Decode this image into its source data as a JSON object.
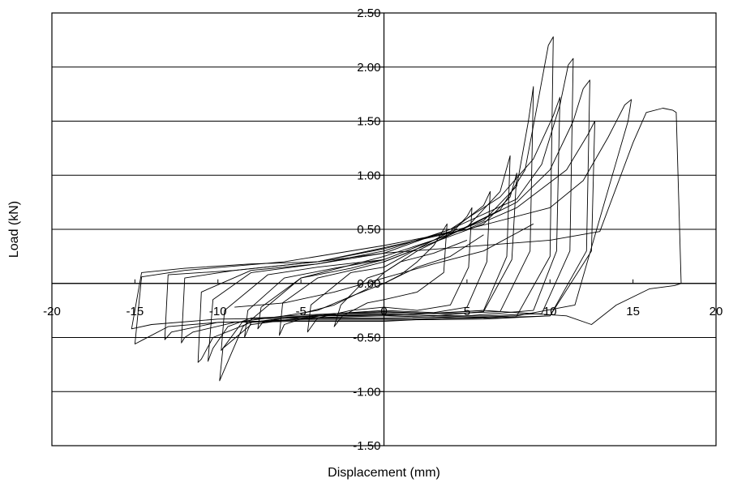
{
  "chart_data": {
    "type": "line",
    "title": "",
    "xlabel": "Displacement (mm)",
    "ylabel": "Load (kN)",
    "xlim": [
      -20,
      20
    ],
    "ylim": [
      -1.5,
      2.5
    ],
    "x_ticks": [
      "-20",
      "-15",
      "-10",
      "-5",
      "0",
      "5",
      "10",
      "15",
      "20"
    ],
    "y_ticks": [
      "2.50",
      "2.00",
      "1.50",
      "1.00",
      "0.50",
      "0.00",
      "-0.50",
      "-1.00",
      "-1.50"
    ],
    "grid": "horizontal",
    "legend": "none",
    "line_color": "#000000",
    "series": [
      {
        "x": [
          0,
          1,
          2,
          3,
          3.8,
          3.6,
          2,
          0,
          -1,
          -2.5,
          -3,
          -2.6,
          -1,
          0
        ],
        "y": [
          0,
          0.08,
          0.2,
          0.35,
          0.55,
          0.1,
          -0.08,
          -0.15,
          -0.18,
          -0.3,
          -0.4,
          -0.2,
          0.05,
          0.1
        ]
      },
      {
        "x": [
          0,
          2,
          4,
          5,
          5.3,
          5.1,
          4,
          2,
          0,
          -2,
          -4,
          -4.6,
          -4.4,
          -2,
          0
        ],
        "y": [
          0.1,
          0.3,
          0.45,
          0.62,
          0.7,
          0.15,
          -0.2,
          -0.25,
          -0.22,
          -0.25,
          -0.32,
          -0.45,
          -0.2,
          0.1,
          0.15
        ]
      },
      {
        "x": [
          0,
          2,
          4,
          6,
          6.4,
          6.2,
          5,
          3,
          0,
          -3,
          -5,
          -6,
          -6.3,
          -6.1,
          -4,
          -2,
          0
        ],
        "y": [
          0.15,
          0.32,
          0.48,
          0.72,
          0.85,
          0.2,
          -0.22,
          -0.27,
          -0.25,
          -0.28,
          -0.33,
          -0.38,
          -0.48,
          -0.18,
          0.05,
          0.12,
          0.2
        ]
      },
      {
        "x": [
          0,
          3,
          5,
          7,
          7.6,
          7.4,
          6,
          3,
          0,
          -3,
          -6,
          -7.3,
          -7.6,
          -7.4,
          -5,
          -2,
          0
        ],
        "y": [
          0.2,
          0.38,
          0.52,
          0.85,
          1.18,
          0.25,
          -0.25,
          -0.28,
          -0.26,
          -0.28,
          -0.32,
          -0.36,
          -0.42,
          -0.22,
          0.05,
          0.14,
          0.22
        ]
      },
      {
        "x": [
          0,
          3,
          6,
          7.6,
          8,
          7.7,
          6,
          3,
          0,
          -3,
          -6,
          -8,
          -8.4,
          -8.2,
          -6,
          -3,
          0
        ],
        "y": [
          0.2,
          0.38,
          0.55,
          0.8,
          1.02,
          0.22,
          -0.26,
          -0.3,
          -0.28,
          -0.29,
          -0.32,
          -0.36,
          -0.5,
          -0.25,
          0.05,
          0.14,
          0.22
        ]
      },
      {
        "x": [
          0,
          3,
          6,
          8,
          8.7,
          9,
          8.8,
          7,
          4,
          0,
          -3,
          -6,
          -8.5,
          -9.6,
          -9.8,
          -9.6,
          -7,
          -4,
          0
        ],
        "y": [
          0.22,
          0.4,
          0.58,
          0.9,
          1.5,
          1.82,
          0.3,
          -0.26,
          -0.28,
          -0.27,
          -0.28,
          -0.3,
          -0.35,
          -0.58,
          -0.62,
          -0.25,
          0.08,
          0.15,
          0.22
        ]
      },
      {
        "x": [
          0,
          4,
          7,
          8.5,
          9.3,
          9.9,
          10.2,
          10.0,
          8,
          5,
          0,
          -4,
          -8,
          -9.7,
          -9.9,
          -8.5,
          -5,
          0
        ],
        "y": [
          0.25,
          0.45,
          0.68,
          1.05,
          1.7,
          2.2,
          2.28,
          0.25,
          -0.3,
          -0.32,
          -0.3,
          -0.3,
          -0.38,
          -0.6,
          -0.9,
          -0.4,
          0.05,
          0.25
        ]
      },
      {
        "x": [
          0,
          4,
          7,
          9,
          10.2,
          10.6,
          10.4,
          9,
          5,
          0,
          -4,
          -8,
          -9.4,
          -10.3,
          -10.6,
          -10.3,
          -8,
          -4,
          0
        ],
        "y": [
          0.28,
          0.5,
          0.8,
          1.15,
          1.55,
          1.72,
          0.3,
          -0.25,
          -0.3,
          -0.29,
          -0.3,
          -0.32,
          -0.4,
          -0.6,
          -0.72,
          -0.15,
          0.1,
          0.18,
          0.28
        ]
      },
      {
        "x": [
          0,
          4,
          8,
          9.5,
          10.6,
          11.1,
          11.4,
          11.2,
          9.5,
          6,
          0,
          -4,
          -8,
          -10.3,
          -11,
          -11.2,
          -11,
          -8,
          -4,
          0
        ],
        "y": [
          0.3,
          0.5,
          0.78,
          1.1,
          1.65,
          2.02,
          2.08,
          0.3,
          -0.28,
          -0.3,
          -0.32,
          -0.32,
          -0.36,
          -0.5,
          -0.7,
          -0.73,
          -0.08,
          0.12,
          0.18,
          0.3
        ]
      },
      {
        "x": [
          0,
          5,
          8,
          10,
          11.4,
          12,
          12.4,
          12.2,
          10,
          6,
          0,
          -5,
          -9,
          -11.5,
          -12,
          -12.2,
          -12,
          -9,
          -4,
          0
        ],
        "y": [
          0.32,
          0.52,
          0.75,
          1.05,
          1.5,
          1.8,
          1.88,
          0.3,
          -0.3,
          -0.32,
          -0.33,
          -0.33,
          -0.36,
          -0.45,
          -0.5,
          -0.55,
          0.05,
          0.12,
          0.2,
          0.32
        ]
      },
      {
        "x": [
          0,
          5,
          8,
          11,
          12.3,
          12.7,
          12.5,
          10,
          6,
          0,
          -5,
          -10,
          -12.8,
          -13.2,
          -13,
          -9,
          -4,
          0
        ],
        "y": [
          0.33,
          0.5,
          0.7,
          1.05,
          1.38,
          1.5,
          0.3,
          -0.3,
          -0.33,
          -0.34,
          -0.34,
          -0.36,
          -0.45,
          -0.52,
          0.08,
          0.12,
          0.2,
          0.33
        ]
      },
      {
        "x": [
          0,
          5,
          10,
          12,
          13.5,
          14.5,
          14.9,
          14.7,
          13,
          11.5,
          8,
          4,
          0,
          -5,
          -10,
          -13,
          -14.5,
          -15,
          -14.6,
          -12,
          -6,
          0
        ],
        "y": [
          0.35,
          0.5,
          0.7,
          0.95,
          1.35,
          1.65,
          1.7,
          1.5,
          0.6,
          -0.2,
          -0.3,
          -0.32,
          -0.35,
          -0.35,
          -0.36,
          -0.4,
          -0.52,
          -0.56,
          0.06,
          0.12,
          0.2,
          0.35
        ]
      },
      {
        "x": [
          0,
          5,
          10,
          13,
          15,
          15.8,
          16.8,
          17.4,
          17.6,
          17.9,
          17.5,
          16,
          14,
          12.5,
          11,
          9,
          6,
          0,
          -5,
          -10,
          -14,
          -15.2,
          -14.6,
          -12,
          -8,
          -4,
          0
        ],
        "y": [
          0.28,
          0.34,
          0.4,
          0.48,
          1.3,
          1.58,
          1.62,
          1.6,
          1.58,
          0.0,
          -0.02,
          -0.05,
          -0.2,
          -0.38,
          -0.3,
          -0.28,
          -0.25,
          -0.3,
          -0.32,
          -0.33,
          -0.38,
          -0.42,
          0.1,
          0.14,
          0.18,
          0.2,
          0.28
        ]
      },
      {
        "x": [
          -5,
          -3,
          -1,
          0,
          1,
          3,
          5
        ],
        "y": [
          -0.28,
          -0.2,
          -0.05,
          0.1,
          0.2,
          0.28,
          0.4
        ]
      },
      {
        "x": [
          -6,
          -4,
          -2,
          0,
          2,
          4,
          6
        ],
        "y": [
          -0.3,
          -0.25,
          -0.12,
          0.0,
          0.15,
          0.25,
          0.45
        ]
      },
      {
        "x": [
          -9,
          -6,
          -3,
          0,
          3,
          6,
          9
        ],
        "y": [
          -0.22,
          -0.18,
          -0.08,
          0.05,
          0.18,
          0.3,
          0.55
        ]
      }
    ]
  }
}
